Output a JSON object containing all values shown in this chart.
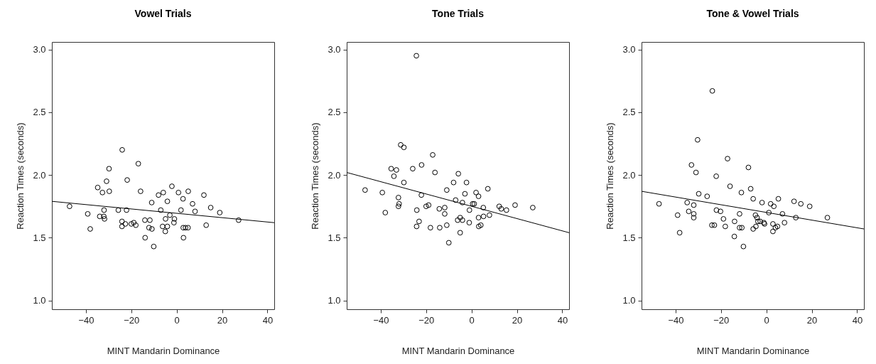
{
  "chart_data": [
    {
      "type": "scatter",
      "title": "Vowel Trials",
      "xlabel": "MINT Mandarin Dominance",
      "ylabel": "Reaction Times (seconds)",
      "xlim": [
        -55,
        43
      ],
      "ylim": [
        0.93,
        3.06
      ],
      "xticks": [
        -40,
        -20,
        0,
        20,
        40
      ],
      "yticks": [
        {
          "value": 1,
          "label": "1.0"
        },
        {
          "value": 1.5,
          "label": "1.5"
        },
        {
          "value": 2,
          "label": "2.0"
        },
        {
          "value": 2.5,
          "label": "2.5"
        },
        {
          "value": 3,
          "label": "3.0"
        }
      ],
      "grid": false,
      "series": [
        {
          "color": "#000000",
          "marker": "circle",
          "x": [
            -47.2,
            -39.2,
            -38.1,
            -34.8,
            -32.7,
            -30.9,
            -29.8,
            -29.7,
            -32.0,
            -33.9,
            -32.1,
            -31.8,
            -24.0,
            -21.8,
            -25.7,
            -22.1,
            -24.1,
            -24.1,
            -22.6,
            -20.0,
            -18.9,
            -18.0,
            -16.9,
            -15.9,
            -13.9,
            -14.0,
            -11.8,
            -12.2,
            -10.9,
            -10.1,
            -11.0,
            -2.1,
            -8.0,
            -5.9,
            0.8,
            5.1,
            12.0,
            2.8,
            -4.1,
            7.0,
            15.0,
            19.0,
            -7.0,
            1.9,
            8.1,
            -3.0,
            -4.9,
            -1.0,
            -1.2,
            -4.1,
            -6.2,
            -5.0,
            2.9,
            3.9,
            5.0,
            13.0,
            3.0,
            27.3
          ],
          "values": [
            1.75,
            1.69,
            1.57,
            1.9,
            1.86,
            1.95,
            2.05,
            1.87,
            1.72,
            1.67,
            1.67,
            1.65,
            2.2,
            1.96,
            1.72,
            1.72,
            1.63,
            1.59,
            1.61,
            1.61,
            1.62,
            1.6,
            2.09,
            1.87,
            1.5,
            1.64,
            1.64,
            1.58,
            1.57,
            1.43,
            1.78,
            1.91,
            1.84,
            1.86,
            1.86,
            1.87,
            1.84,
            1.81,
            1.79,
            1.77,
            1.74,
            1.7,
            1.72,
            1.72,
            1.71,
            1.68,
            1.65,
            1.65,
            1.62,
            1.59,
            1.59,
            1.55,
            1.58,
            1.58,
            1.58,
            1.6,
            1.5,
            1.64
          ]
        },
        {
          "type": "line",
          "color": "#000000",
          "marker": "none",
          "x": [
            -55,
            43
          ],
          "values": [
            1.79,
            1.62
          ]
        }
      ]
    },
    {
      "type": "scatter",
      "title": "Tone Trials",
      "xlabel": "MINT Mandarin Dominance",
      "ylabel": "Reaction Times (seconds)",
      "xlim": [
        -55,
        43
      ],
      "ylim": [
        0.93,
        3.06
      ],
      "xticks": [
        -40,
        -20,
        0,
        20,
        40
      ],
      "yticks": [
        {
          "value": 1,
          "label": "1.0"
        },
        {
          "value": 1.5,
          "label": "1.5"
        },
        {
          "value": 2,
          "label": "2.0"
        },
        {
          "value": 2.5,
          "label": "2.5"
        },
        {
          "value": 3,
          "label": "3.0"
        }
      ],
      "grid": false,
      "series": [
        {
          "color": "#000000",
          "marker": "circle",
          "x": [
            -24.3,
            -31.2,
            -29.8,
            -17.1,
            -35.4,
            -33.1,
            -34.2,
            -25.9,
            -22.0,
            -16.1,
            -5.8,
            -29.8,
            -7.9,
            -2.2,
            -46.9,
            -39.3,
            -10.9,
            -32.2,
            -22.1,
            -2.9,
            -31.9,
            -32.2,
            -7.0,
            -4.0,
            0.5,
            -38.0,
            -24.1,
            -20.0,
            -18.9,
            -14.2,
            -11.8,
            -11.8,
            -0.9,
            -23.1,
            -24.2,
            -18.1,
            -14.0,
            -10.9,
            -6.1,
            -5.0,
            -4.0,
            -1.0,
            -5.0,
            -10.0,
            7.2,
            2.0,
            3.1,
            1.2,
            5.2,
            12.2,
            13.1,
            15.4,
            19.2,
            27.0,
            3.1,
            5.3,
            7.9,
            3.2,
            4.1
          ],
          "values": [
            2.95,
            2.24,
            2.22,
            2.16,
            2.05,
            2.04,
            1.99,
            2.05,
            2.08,
            2.02,
            2.01,
            1.94,
            1.94,
            1.94,
            1.88,
            1.86,
            1.88,
            1.82,
            1.84,
            1.85,
            1.77,
            1.75,
            1.8,
            1.78,
            1.77,
            1.7,
            1.72,
            1.75,
            1.76,
            1.73,
            1.74,
            1.69,
            1.72,
            1.63,
            1.59,
            1.58,
            1.58,
            1.6,
            1.64,
            1.66,
            1.64,
            1.62,
            1.54,
            1.46,
            1.89,
            1.86,
            1.83,
            1.77,
            1.74,
            1.75,
            1.73,
            1.72,
            1.76,
            1.74,
            1.66,
            1.67,
            1.68,
            1.59,
            1.6
          ]
        },
        {
          "type": "line",
          "color": "#000000",
          "marker": "none",
          "x": [
            -55,
            43
          ],
          "values": [
            2.02,
            1.54
          ]
        }
      ]
    },
    {
      "type": "scatter",
      "title": "Tone & Vowel Trials",
      "xlabel": "MINT Mandarin Dominance",
      "ylabel": "Reaction Times (seconds)",
      "xlim": [
        -55,
        43
      ],
      "ylim": [
        0.93,
        3.06
      ],
      "xticks": [
        -40,
        -20,
        0,
        20,
        40
      ],
      "yticks": [
        {
          "value": 1,
          "label": "1.0"
        },
        {
          "value": 1.5,
          "label": "1.5"
        },
        {
          "value": 2,
          "label": "2.0"
        },
        {
          "value": 2.5,
          "label": "2.5"
        },
        {
          "value": 3,
          "label": "3.0"
        }
      ],
      "grid": false,
      "series": [
        {
          "color": "#000000",
          "marker": "circle",
          "x": [
            -23.8,
            -30.3,
            -17.1,
            -33.0,
            -31.0,
            -22.1,
            -7.9,
            -16.0,
            -6.9,
            -29.8,
            -11.0,
            -26.1,
            -5.8,
            -47.3,
            -34.9,
            -32.0,
            -34.2,
            -32.0,
            -32.0,
            -22.0,
            -20.2,
            -39.1,
            -11.8,
            -18.9,
            -14.0,
            -24.0,
            -22.9,
            -18.1,
            -11.8,
            -10.8,
            -5.8,
            -38.2,
            -14.1,
            -10.1,
            5.3,
            -1.9,
            1.9,
            3.3,
            12.2,
            15.2,
            19.1,
            1.1,
            7.1,
            -4.8,
            -4.1,
            13.0,
            26.9,
            -3.7,
            -2.7,
            -1.1,
            -0.8,
            2.9,
            4.9,
            8.0,
            -4.6,
            2.9,
            4.0
          ],
          "values": [
            2.67,
            2.28,
            2.13,
            2.08,
            2.02,
            1.99,
            2.06,
            1.91,
            1.89,
            1.85,
            1.86,
            1.83,
            1.81,
            1.77,
            1.78,
            1.76,
            1.71,
            1.69,
            1.66,
            1.72,
            1.71,
            1.68,
            1.69,
            1.65,
            1.63,
            1.6,
            1.6,
            1.59,
            1.58,
            1.58,
            1.57,
            1.54,
            1.51,
            1.43,
            1.81,
            1.78,
            1.77,
            1.75,
            1.79,
            1.77,
            1.75,
            1.7,
            1.69,
            1.68,
            1.66,
            1.66,
            1.66,
            1.63,
            1.63,
            1.62,
            1.61,
            1.61,
            1.59,
            1.62,
            1.59,
            1.55,
            1.58
          ]
        },
        {
          "type": "line",
          "color": "#000000",
          "marker": "none",
          "x": [
            -55,
            43
          ],
          "values": [
            1.87,
            1.57
          ]
        }
      ]
    }
  ]
}
